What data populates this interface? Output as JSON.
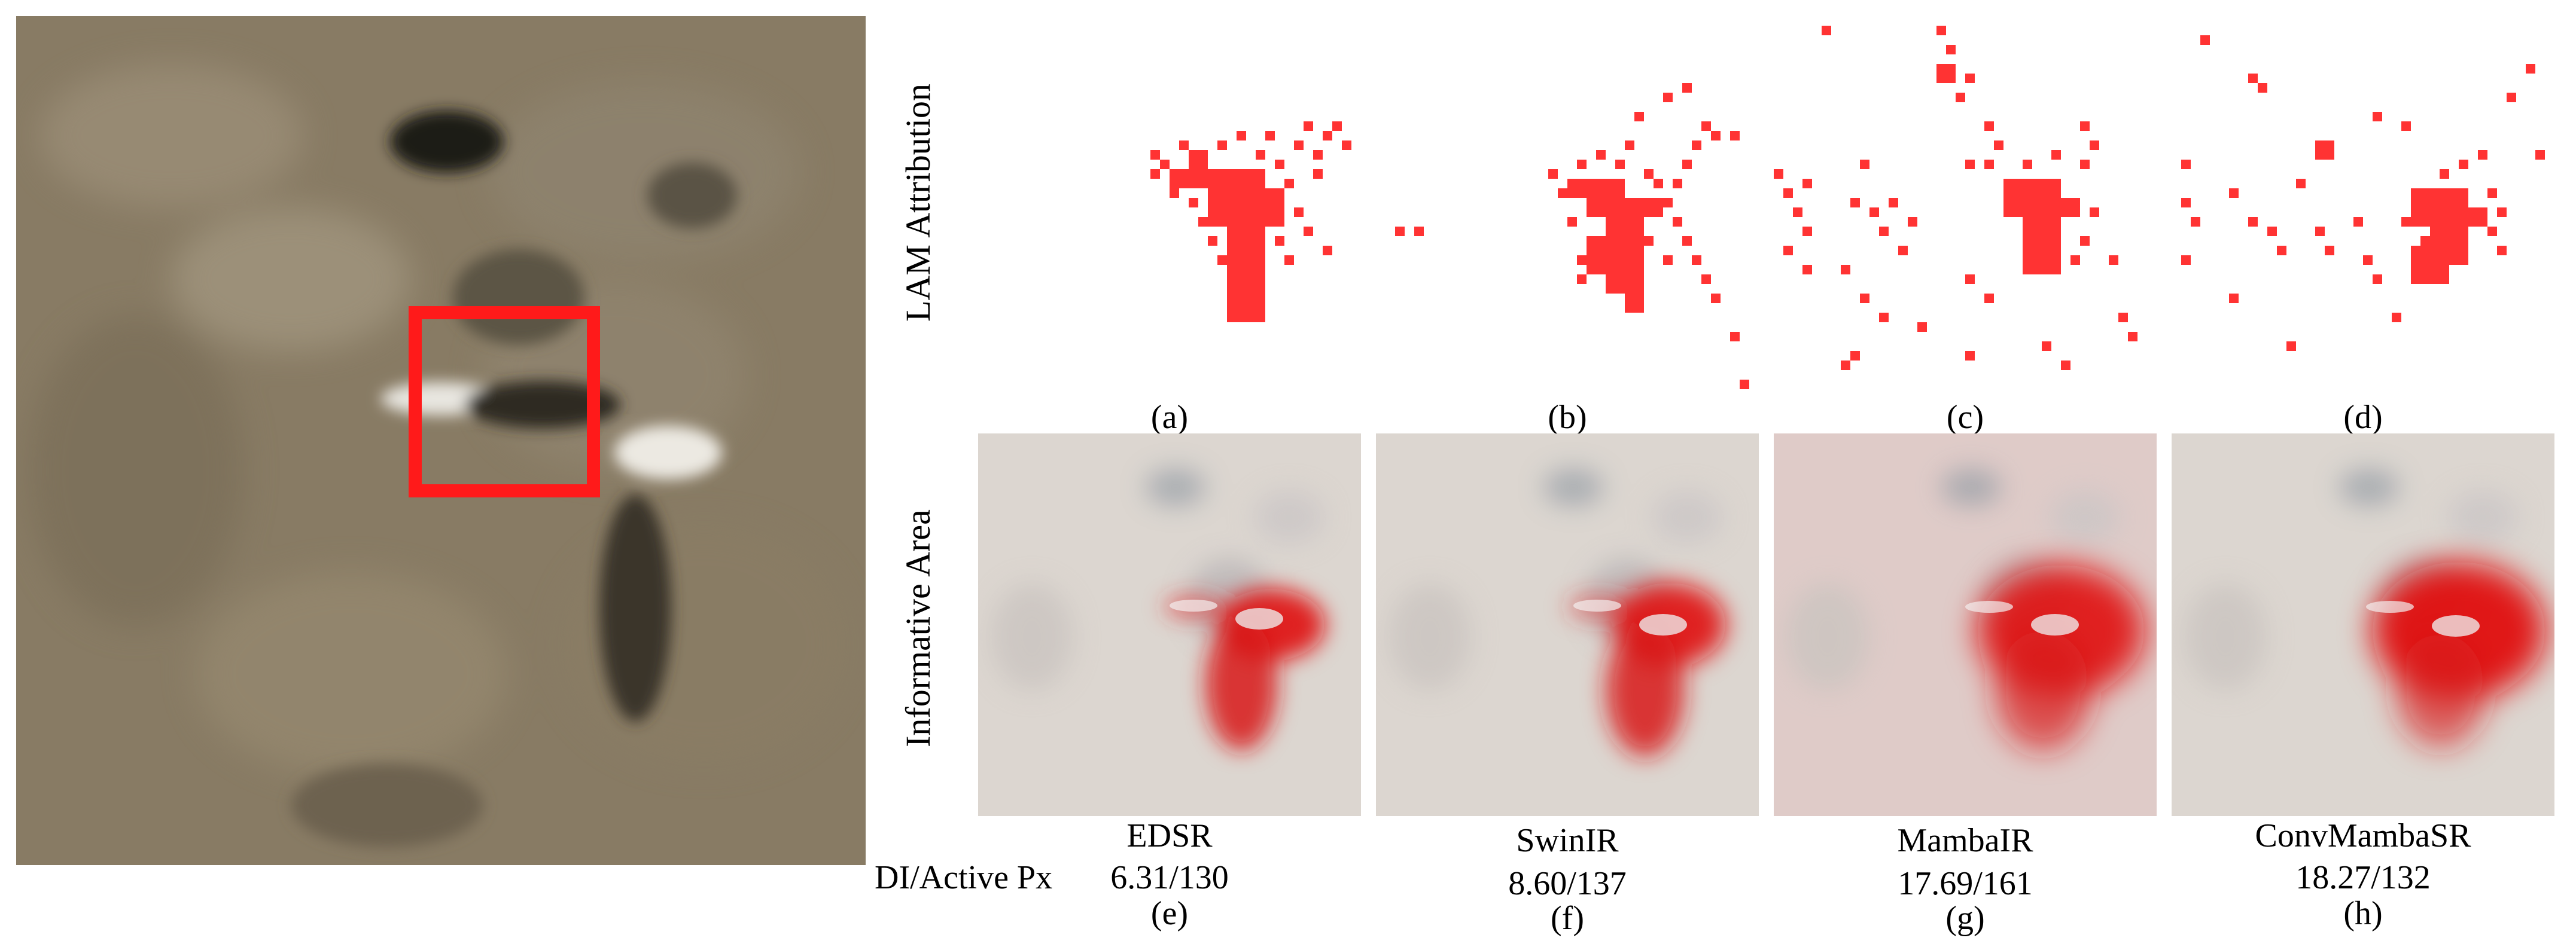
{
  "figure": {
    "row_labels": {
      "top": "LAM Attribution",
      "bottom": "Informative Area",
      "metric": "DI/Active Px"
    },
    "lam_panels": [
      {
        "letter": "(a)"
      },
      {
        "letter": "(b)"
      },
      {
        "letter": "(c)"
      },
      {
        "letter": "(d)"
      }
    ],
    "info_panels": [
      {
        "model": "EDSR",
        "score": "6.31/130",
        "letter": "(e)"
      },
      {
        "model": "SwinIR",
        "score": "8.60/137",
        "letter": "(f)"
      },
      {
        "model": "MambaIR",
        "score": "17.69/161",
        "letter": "(g)"
      },
      {
        "model": "ConvMambaSR",
        "score": "18.27/132",
        "letter": "(h)"
      }
    ],
    "colors": {
      "attribution": "#ff3333",
      "highlight_box": "#ff1a1a",
      "heat": "#e01010"
    }
  }
}
